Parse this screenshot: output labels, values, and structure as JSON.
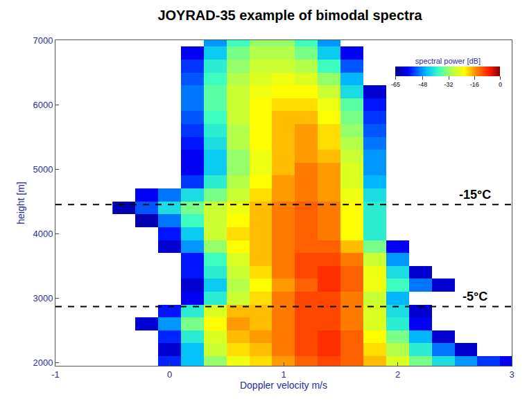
{
  "chart_data": {
    "type": "heatmap",
    "title": "JOYRAD-35 example of bimodal spectra",
    "x_label": "Doppler velocity m/s",
    "y_label": "height [m]",
    "xlim": [
      -1,
      3
    ],
    "xticks": [
      -1,
      0,
      1,
      2,
      3
    ],
    "ylim": [
      1950,
      7000
    ],
    "yticks": [
      2000,
      3000,
      4000,
      5000,
      6000,
      7000
    ],
    "grid": false,
    "colorbar": {
      "title": "spectral power [dB]",
      "range": [
        -65,
        0
      ],
      "ticks": [
        -65,
        -48,
        -32,
        -16,
        0
      ]
    },
    "hlines": [
      {
        "value": 4450,
        "label": "-15°C"
      },
      {
        "value": 2870,
        "label": "-5°C"
      }
    ],
    "x": [
      -0.4,
      -0.2,
      0,
      0.2,
      0.4,
      0.6,
      0.8,
      1.0,
      1.2,
      1.4,
      1.6,
      1.8,
      2.0,
      2.2,
      2.4,
      2.6,
      2.8,
      3.0
    ],
    "y": [
      2000,
      2200,
      2400,
      2600,
      2800,
      3000,
      3200,
      3400,
      3600,
      3800,
      4000,
      4200,
      4400,
      4600,
      4800,
      5000,
      5200,
      5400,
      5600,
      5800,
      6000,
      6200,
      6400,
      6600,
      6800,
      7000
    ],
    "z": [
      [
        null,
        null,
        -55,
        -45,
        -32,
        -24,
        -20,
        -16,
        -12,
        -10,
        -12,
        -18,
        -26,
        -34,
        -42,
        -48,
        -54,
        -58
      ],
      [
        null,
        null,
        -60,
        -45,
        -28,
        -20,
        -18,
        -14,
        -10,
        -8,
        -12,
        -20,
        -30,
        -40,
        -50,
        -60,
        null,
        null
      ],
      [
        null,
        null,
        -55,
        -40,
        -26,
        -18,
        -16,
        -14,
        -10,
        -8,
        -12,
        -22,
        -34,
        -46,
        -60,
        null,
        null,
        null
      ],
      [
        null,
        -60,
        -48,
        -34,
        -22,
        -16,
        -18,
        -14,
        -10,
        -10,
        -14,
        -26,
        -40,
        -58,
        null,
        null,
        null,
        null
      ],
      [
        null,
        null,
        -56,
        -40,
        -26,
        -18,
        -18,
        -14,
        -10,
        -10,
        -14,
        -26,
        -42,
        -60,
        null,
        null,
        null,
        null
      ],
      [
        null,
        null,
        null,
        -58,
        -40,
        -28,
        -20,
        -14,
        -10,
        -10,
        -14,
        -28,
        -46,
        null,
        null,
        null,
        null,
        null
      ],
      [
        null,
        null,
        null,
        -60,
        -44,
        -30,
        -22,
        -16,
        -12,
        -8,
        -12,
        -24,
        -38,
        -50,
        -60,
        null,
        null,
        null
      ],
      [
        null,
        null,
        null,
        -56,
        -40,
        -28,
        -20,
        -14,
        -10,
        -8,
        -12,
        -24,
        -42,
        -60,
        null,
        null,
        null,
        null
      ],
      [
        null,
        null,
        null,
        -56,
        -38,
        -26,
        -18,
        -14,
        -10,
        -10,
        -14,
        -28,
        -48,
        null,
        null,
        null,
        null,
        null
      ],
      [
        null,
        null,
        -60,
        -48,
        -32,
        -22,
        -18,
        -14,
        -12,
        -12,
        -18,
        -34,
        -58,
        null,
        null,
        null,
        null,
        null
      ],
      [
        null,
        null,
        -56,
        -44,
        -28,
        -20,
        -18,
        -14,
        -12,
        -14,
        -22,
        -40,
        null,
        null,
        null,
        null,
        null,
        null
      ],
      [
        null,
        -62,
        -50,
        -38,
        -28,
        -22,
        -18,
        -14,
        -12,
        -14,
        -22,
        -40,
        null,
        null,
        null,
        null,
        null,
        null
      ],
      [
        -62,
        -52,
        -42,
        -34,
        -28,
        -24,
        -18,
        -14,
        -12,
        -14,
        -22,
        -40,
        null,
        null,
        null,
        null,
        null,
        null
      ],
      [
        null,
        -58,
        -50,
        -42,
        -34,
        -28,
        -20,
        -16,
        -14,
        -16,
        -24,
        -42,
        null,
        null,
        null,
        null,
        null,
        null
      ],
      [
        null,
        null,
        null,
        -54,
        -40,
        -30,
        -22,
        -16,
        -14,
        -16,
        -26,
        -46,
        null,
        null,
        null,
        null,
        null,
        null
      ],
      [
        null,
        null,
        null,
        -58,
        -44,
        -32,
        -24,
        -18,
        -14,
        -16,
        -26,
        -48,
        null,
        null,
        null,
        null,
        null,
        null
      ],
      [
        null,
        null,
        null,
        -58,
        -44,
        -32,
        -24,
        -18,
        -16,
        -18,
        -28,
        -48,
        null,
        null,
        null,
        null,
        null,
        null
      ],
      [
        null,
        null,
        null,
        -56,
        -42,
        -30,
        -22,
        -18,
        -16,
        -20,
        -30,
        -50,
        null,
        null,
        null,
        null,
        null,
        null
      ],
      [
        null,
        null,
        null,
        -54,
        -40,
        -30,
        -22,
        -18,
        -16,
        -20,
        -32,
        -52,
        null,
        null,
        null,
        null,
        null,
        null
      ],
      [
        null,
        null,
        null,
        -52,
        -38,
        -28,
        -22,
        -18,
        -18,
        -22,
        -34,
        -54,
        null,
        null,
        null,
        null,
        null,
        null
      ],
      [
        null,
        null,
        null,
        -50,
        -36,
        -28,
        -22,
        -20,
        -20,
        -24,
        -36,
        -56,
        null,
        null,
        null,
        null,
        null,
        null
      ],
      [
        null,
        null,
        null,
        -50,
        -36,
        -28,
        -24,
        -22,
        -22,
        -28,
        -42,
        -60,
        null,
        null,
        null,
        null,
        null,
        null
      ],
      [
        null,
        null,
        null,
        -52,
        -38,
        -30,
        -26,
        -24,
        -26,
        -32,
        -46,
        null,
        null,
        null,
        null,
        null,
        null,
        null
      ],
      [
        null,
        null,
        null,
        -54,
        -40,
        -32,
        -28,
        -28,
        -30,
        -38,
        -52,
        null,
        null,
        null,
        null,
        null,
        null,
        null
      ],
      [
        null,
        null,
        null,
        -58,
        -44,
        -34,
        -30,
        -30,
        -34,
        -44,
        -58,
        null,
        null,
        null,
        null,
        null,
        null,
        null
      ],
      [
        null,
        null,
        null,
        null,
        -48,
        -38,
        -32,
        -32,
        -38,
        -48,
        null,
        null,
        null,
        null,
        null,
        null,
        null,
        null
      ]
    ]
  }
}
